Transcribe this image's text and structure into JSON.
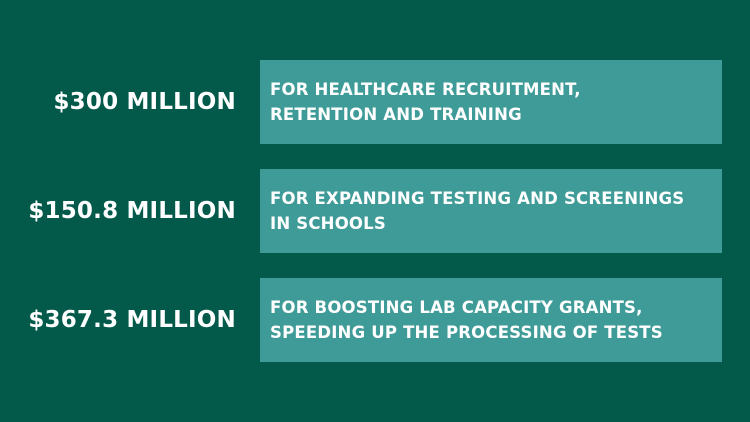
{
  "colors": {
    "background": "#035a4b",
    "box": "#3f9b97",
    "text": "#ffffff"
  },
  "items": [
    {
      "amount": "$300 MILLION",
      "description": "FOR HEALTHCARE RECRUITMENT,\nRETENTION AND TRAINING"
    },
    {
      "amount": "$150.8 MILLION",
      "description": "FOR EXPANDING TESTING AND SCREENINGS\nIN SCHOOLS"
    },
    {
      "amount": "$367.3 MILLION",
      "description": "FOR BOOSTING LAB CAPACITY GRANTS,\nSPEEDING UP THE PROCESSING OF TESTS"
    }
  ]
}
